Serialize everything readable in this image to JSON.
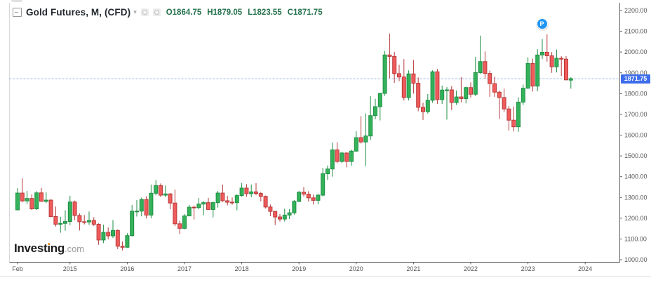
{
  "header": {
    "title": "Gold Futures, M, (CFD)",
    "caret": "▾",
    "ohlc": [
      "O1864.75",
      "H1879.05",
      "L1823.55",
      "C1871.75"
    ],
    "ohlc_color": "#23714B"
  },
  "logo": {
    "part1": "Invest",
    "i": "i",
    "part2": "ng",
    "suffix": ".com"
  },
  "price_label": {
    "value": "1871.75"
  },
  "marker": {
    "label": "P",
    "month_index": 110,
    "price": 2135
  },
  "chart_data": {
    "type": "candlestick",
    "title": "Gold Futures, M, (CFD)",
    "interval": "monthly",
    "x_range_note": "Feb 2014 through Oct 2023, one candle per month",
    "ylim": [
      1000,
      2200
    ],
    "grid": "off",
    "current_price": 1871.75,
    "colors": {
      "up_fill": "#33B25A",
      "up_stroke": "#1F8F43",
      "down_fill": "#F15B5B",
      "down_stroke": "#B73A3A",
      "price_line": "#9FB8E8",
      "axis_text": "#555555",
      "axis_line": "#666666",
      "bottom_line": "#444444",
      "left_border": "#d9d9d9",
      "separator": "#e2e2e2",
      "price_label_bg": "#3D6DEB",
      "marker_bg": "#2196F3"
    },
    "y_ticks": [
      {
        "v": 2200,
        "label": "2200.00"
      },
      {
        "v": 2100,
        "label": "2100.00"
      },
      {
        "v": 2000,
        "label": "2000.00"
      },
      {
        "v": 1900,
        "label": "1900.00"
      },
      {
        "v": 1800,
        "label": "1800.00"
      },
      {
        "v": 1700,
        "label": "1700.00"
      },
      {
        "v": 1600,
        "label": "1600.00"
      },
      {
        "v": 1500,
        "label": "1500.00"
      },
      {
        "v": 1400,
        "label": "1400.00"
      },
      {
        "v": 1300,
        "label": "1300.00"
      },
      {
        "v": 1200,
        "label": "1200.00"
      },
      {
        "v": 1100,
        "label": "1100.00"
      },
      {
        "v": 1000,
        "label": "1000.00"
      }
    ],
    "x_ticks": [
      {
        "label": "Feb",
        "i": 0
      },
      {
        "label": "2015",
        "i": 11
      },
      {
        "label": "2016",
        "i": 23
      },
      {
        "label": "2017",
        "i": 35
      },
      {
        "label": "2018",
        "i": 47
      },
      {
        "label": "2019",
        "i": 59
      },
      {
        "label": "2020",
        "i": 71
      },
      {
        "label": "2021",
        "i": 83
      },
      {
        "label": "2022",
        "i": 95
      },
      {
        "label": "2023",
        "i": 107
      },
      {
        "label": "2024",
        "i": 119
      }
    ],
    "candles": [
      [
        "2014-02",
        1240,
        1345,
        1238,
        1321
      ],
      [
        "2014-03",
        1321,
        1392,
        1277,
        1283
      ],
      [
        "2014-04",
        1283,
        1331,
        1268,
        1295
      ],
      [
        "2014-05",
        1295,
        1315,
        1240,
        1245
      ],
      [
        "2014-06",
        1245,
        1330,
        1240,
        1322
      ],
      [
        "2014-07",
        1322,
        1346,
        1280,
        1281
      ],
      [
        "2014-08",
        1281,
        1324,
        1273,
        1287
      ],
      [
        "2014-09",
        1287,
        1292,
        1204,
        1208
      ],
      [
        "2014-10",
        1208,
        1256,
        1160,
        1171
      ],
      [
        "2014-11",
        1171,
        1207,
        1130,
        1175
      ],
      [
        "2014-12",
        1175,
        1238,
        1140,
        1184
      ],
      [
        "2015-01",
        1184,
        1308,
        1167,
        1278
      ],
      [
        "2015-02",
        1278,
        1285,
        1190,
        1213
      ],
      [
        "2015-03",
        1213,
        1223,
        1141,
        1183
      ],
      [
        "2015-04",
        1183,
        1215,
        1170,
        1182
      ],
      [
        "2015-05",
        1182,
        1232,
        1168,
        1189
      ],
      [
        "2015-06",
        1189,
        1205,
        1162,
        1171
      ],
      [
        "2015-07",
        1171,
        1175,
        1072,
        1095
      ],
      [
        "2015-08",
        1095,
        1169,
        1080,
        1132
      ],
      [
        "2015-09",
        1132,
        1156,
        1098,
        1115
      ],
      [
        "2015-10",
        1115,
        1191,
        1104,
        1141
      ],
      [
        "2015-11",
        1141,
        1146,
        1051,
        1065
      ],
      [
        "2015-12",
        1065,
        1088,
        1045,
        1060
      ],
      [
        "2016-01",
        1060,
        1128,
        1058,
        1116
      ],
      [
        "2016-02",
        1116,
        1264,
        1112,
        1234
      ],
      [
        "2016-03",
        1234,
        1287,
        1208,
        1234
      ],
      [
        "2016-04",
        1234,
        1299,
        1209,
        1290
      ],
      [
        "2016-05",
        1290,
        1306,
        1199,
        1215
      ],
      [
        "2016-06",
        1215,
        1362,
        1199,
        1320
      ],
      [
        "2016-07",
        1320,
        1384,
        1310,
        1357
      ],
      [
        "2016-08",
        1357,
        1367,
        1302,
        1311
      ],
      [
        "2016-09",
        1311,
        1357,
        1302,
        1317
      ],
      [
        "2016-10",
        1317,
        1321,
        1243,
        1273
      ],
      [
        "2016-11",
        1273,
        1338,
        1162,
        1173
      ],
      [
        "2016-12",
        1173,
        1188,
        1124,
        1151
      ],
      [
        "2017-01",
        1151,
        1220,
        1146,
        1211
      ],
      [
        "2017-02",
        1211,
        1264,
        1210,
        1253
      ],
      [
        "2017-03",
        1253,
        1261,
        1194,
        1251
      ],
      [
        "2017-04",
        1251,
        1297,
        1243,
        1268
      ],
      [
        "2017-05",
        1268,
        1282,
        1214,
        1275
      ],
      [
        "2017-06",
        1275,
        1298,
        1240,
        1242
      ],
      [
        "2017-07",
        1242,
        1280,
        1204,
        1275
      ],
      [
        "2017-08",
        1275,
        1331,
        1251,
        1321
      ],
      [
        "2017-09",
        1321,
        1362,
        1278,
        1284
      ],
      [
        "2017-10",
        1284,
        1308,
        1262,
        1277
      ],
      [
        "2017-11",
        1277,
        1300,
        1265,
        1275
      ],
      [
        "2017-12",
        1275,
        1315,
        1238,
        1309
      ],
      [
        "2018-01",
        1309,
        1370,
        1303,
        1345
      ],
      [
        "2018-02",
        1345,
        1364,
        1303,
        1318
      ],
      [
        "2018-03",
        1318,
        1362,
        1301,
        1327
      ],
      [
        "2018-04",
        1327,
        1369,
        1310,
        1319
      ],
      [
        "2018-05",
        1319,
        1326,
        1281,
        1305
      ],
      [
        "2018-06",
        1305,
        1309,
        1247,
        1254
      ],
      [
        "2018-07",
        1254,
        1266,
        1210,
        1233
      ],
      [
        "2018-08",
        1233,
        1235,
        1167,
        1206
      ],
      [
        "2018-09",
        1206,
        1220,
        1184,
        1196
      ],
      [
        "2018-10",
        1196,
        1246,
        1184,
        1215
      ],
      [
        "2018-11",
        1215,
        1244,
        1196,
        1226
      ],
      [
        "2018-12",
        1226,
        1288,
        1217,
        1281
      ],
      [
        "2019-01",
        1281,
        1331,
        1277,
        1325
      ],
      [
        "2019-02",
        1325,
        1350,
        1305,
        1316
      ],
      [
        "2019-03",
        1316,
        1330,
        1280,
        1298
      ],
      [
        "2019-04",
        1298,
        1314,
        1266,
        1286
      ],
      [
        "2019-05",
        1286,
        1316,
        1267,
        1311
      ],
      [
        "2019-06",
        1311,
        1442,
        1305,
        1414
      ],
      [
        "2019-07",
        1414,
        1454,
        1384,
        1437
      ],
      [
        "2019-08",
        1437,
        1565,
        1400,
        1529
      ],
      [
        "2019-09",
        1529,
        1566,
        1465,
        1473
      ],
      [
        "2019-10",
        1473,
        1520,
        1465,
        1514
      ],
      [
        "2019-11",
        1514,
        1517,
        1445,
        1473
      ],
      [
        "2019-12",
        1473,
        1530,
        1453,
        1523
      ],
      [
        "2020-01",
        1523,
        1619,
        1520,
        1588
      ],
      [
        "2020-02",
        1588,
        1691,
        1560,
        1567
      ],
      [
        "2020-03",
        1567,
        1704,
        1451,
        1596
      ],
      [
        "2020-04",
        1596,
        1788,
        1576,
        1694
      ],
      [
        "2020-05",
        1694,
        1775,
        1676,
        1737
      ],
      [
        "2020-06",
        1737,
        1804,
        1671,
        1801
      ],
      [
        "2020-07",
        1801,
        2005,
        1789,
        1986
      ],
      [
        "2020-08",
        1986,
        2089,
        1874,
        1979
      ],
      [
        "2020-09",
        1979,
        2001,
        1851,
        1896
      ],
      [
        "2020-10",
        1896,
        1939,
        1860,
        1880
      ],
      [
        "2020-11",
        1880,
        1966,
        1767,
        1781
      ],
      [
        "2020-12",
        1781,
        1912,
        1767,
        1895
      ],
      [
        "2021-01",
        1895,
        1962,
        1800,
        1850
      ],
      [
        "2021-02",
        1850,
        1878,
        1715,
        1734
      ],
      [
        "2021-03",
        1734,
        1756,
        1673,
        1713
      ],
      [
        "2021-04",
        1713,
        1798,
        1704,
        1768
      ],
      [
        "2021-05",
        1768,
        1912,
        1756,
        1905
      ],
      [
        "2021-06",
        1905,
        1919,
        1750,
        1771
      ],
      [
        "2021-07",
        1771,
        1839,
        1750,
        1817
      ],
      [
        "2021-08",
        1817,
        1831,
        1675,
        1818
      ],
      [
        "2021-09",
        1818,
        1836,
        1721,
        1757
      ],
      [
        "2021-10",
        1757,
        1815,
        1746,
        1784
      ],
      [
        "2021-11",
        1784,
        1879,
        1758,
        1776
      ],
      [
        "2021-12",
        1776,
        1833,
        1753,
        1829
      ],
      [
        "2022-01",
        1829,
        1854,
        1781,
        1797
      ],
      [
        "2022-02",
        1797,
        1976,
        1788,
        1901
      ],
      [
        "2022-03",
        1901,
        2079,
        1895,
        1954
      ],
      [
        "2022-04",
        1954,
        2003,
        1872,
        1897
      ],
      [
        "2022-05",
        1897,
        1911,
        1785,
        1848
      ],
      [
        "2022-06",
        1848,
        1882,
        1784,
        1807
      ],
      [
        "2022-07",
        1807,
        1814,
        1678,
        1781
      ],
      [
        "2022-08",
        1781,
        1824,
        1711,
        1726
      ],
      [
        "2022-09",
        1726,
        1741,
        1622,
        1672
      ],
      [
        "2022-10",
        1672,
        1738,
        1618,
        1640
      ],
      [
        "2022-11",
        1640,
        1782,
        1616,
        1759
      ],
      [
        "2022-12",
        1759,
        1843,
        1745,
        1826
      ],
      [
        "2023-01",
        1826,
        1975,
        1823,
        1945
      ],
      [
        "2023-02",
        1945,
        1968,
        1810,
        1836
      ],
      [
        "2023-03",
        1836,
        2014,
        1811,
        1986
      ],
      [
        "2023-04",
        1986,
        2063,
        1966,
        1999
      ],
      [
        "2023-05",
        1999,
        2085,
        1954,
        1982
      ],
      [
        "2023-06",
        1982,
        2000,
        1900,
        1929
      ],
      [
        "2023-07",
        1929,
        2012,
        1902,
        1970
      ],
      [
        "2023-08",
        1970,
        1980,
        1884,
        1966
      ],
      [
        "2023-09",
        1966,
        1980,
        1866,
        1866
      ],
      [
        "2023-10",
        1864.75,
        1879.05,
        1823.55,
        1871.75
      ]
    ]
  }
}
